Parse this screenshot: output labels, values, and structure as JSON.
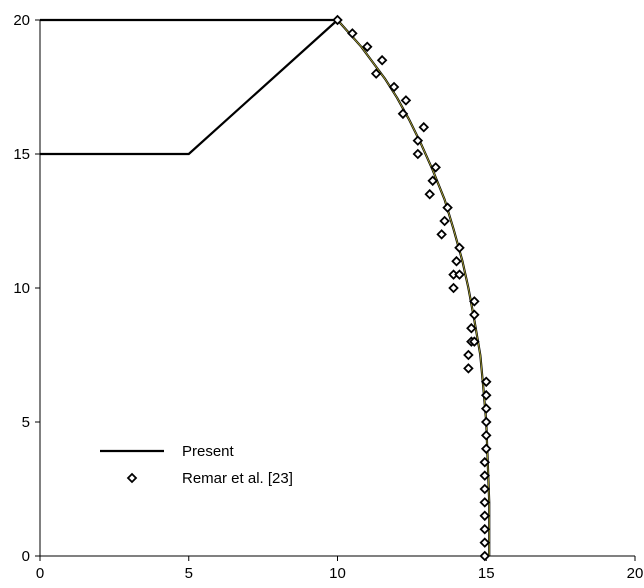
{
  "chart_data": {
    "type": "line",
    "title": "",
    "xlabel": "",
    "ylabel": "",
    "xlim": [
      0,
      20
    ],
    "ylim": [
      0,
      20
    ],
    "x_ticks": [
      "0",
      "5",
      "10",
      "15",
      "20"
    ],
    "y_ticks": [
      "0",
      "5",
      "10",
      "15",
      "20"
    ],
    "grid": false,
    "legend": {
      "placement": "bottom-left",
      "entries": [
        "Present",
        "Remar et al. [23]"
      ]
    },
    "series": [
      {
        "name": "Present",
        "style": "line",
        "color": "#000000",
        "segments": [
          [
            [
              0,
              20
            ],
            [
              10,
              20
            ]
          ],
          [
            [
              0,
              15
            ],
            [
              5,
              15
            ],
            [
              10,
              20
            ]
          ],
          [
            [
              10.0,
              20.0
            ],
            [
              10.4,
              19.5
            ],
            [
              10.8,
              19.0
            ],
            [
              11.2,
              18.4
            ],
            [
              11.6,
              17.8
            ],
            [
              12.0,
              17.1
            ],
            [
              12.4,
              16.3
            ],
            [
              12.8,
              15.4
            ],
            [
              13.2,
              14.4
            ],
            [
              13.6,
              13.3
            ],
            [
              13.9,
              12.2
            ],
            [
              14.2,
              11.0
            ],
            [
              14.4,
              10.0
            ],
            [
              14.6,
              8.8
            ],
            [
              14.8,
              7.5
            ],
            [
              14.9,
              6.3
            ],
            [
              15.0,
              5.0
            ],
            [
              15.05,
              3.5
            ],
            [
              15.1,
              2.0
            ],
            [
              15.1,
              1.0
            ],
            [
              15.1,
              0.0
            ]
          ]
        ]
      },
      {
        "name": "Remar et al. [23]",
        "style": "markers",
        "marker": "diamond",
        "color": "#000000",
        "points": [
          [
            10.0,
            20.0
          ],
          [
            10.5,
            19.5
          ],
          [
            11.0,
            19.0
          ],
          [
            11.5,
            18.5
          ],
          [
            11.3,
            18.0
          ],
          [
            11.9,
            17.5
          ],
          [
            12.3,
            17.0
          ],
          [
            12.2,
            16.5
          ],
          [
            12.9,
            16.0
          ],
          [
            12.7,
            15.5
          ],
          [
            12.7,
            15.0
          ],
          [
            13.3,
            14.5
          ],
          [
            13.2,
            14.0
          ],
          [
            13.1,
            13.5
          ],
          [
            13.7,
            13.0
          ],
          [
            13.6,
            12.5
          ],
          [
            13.5,
            12.0
          ],
          [
            14.1,
            11.5
          ],
          [
            14.0,
            11.0
          ],
          [
            13.9,
            10.5
          ],
          [
            13.9,
            10.0
          ],
          [
            14.1,
            10.5
          ],
          [
            14.6,
            9.5
          ],
          [
            14.6,
            9.0
          ],
          [
            14.5,
            8.5
          ],
          [
            14.5,
            8.0
          ],
          [
            14.4,
            7.5
          ],
          [
            14.4,
            7.0
          ],
          [
            14.6,
            8.0
          ],
          [
            15.0,
            6.5
          ],
          [
            15.0,
            6.0
          ],
          [
            15.0,
            5.5
          ],
          [
            15.0,
            5.0
          ],
          [
            15.0,
            4.5
          ],
          [
            15.0,
            4.0
          ],
          [
            14.95,
            3.5
          ],
          [
            14.95,
            3.0
          ],
          [
            14.95,
            2.5
          ],
          [
            14.95,
            2.0
          ],
          [
            14.95,
            1.5
          ],
          [
            14.95,
            1.0
          ],
          [
            14.95,
            0.5
          ],
          [
            14.95,
            0.0
          ]
        ]
      }
    ]
  }
}
